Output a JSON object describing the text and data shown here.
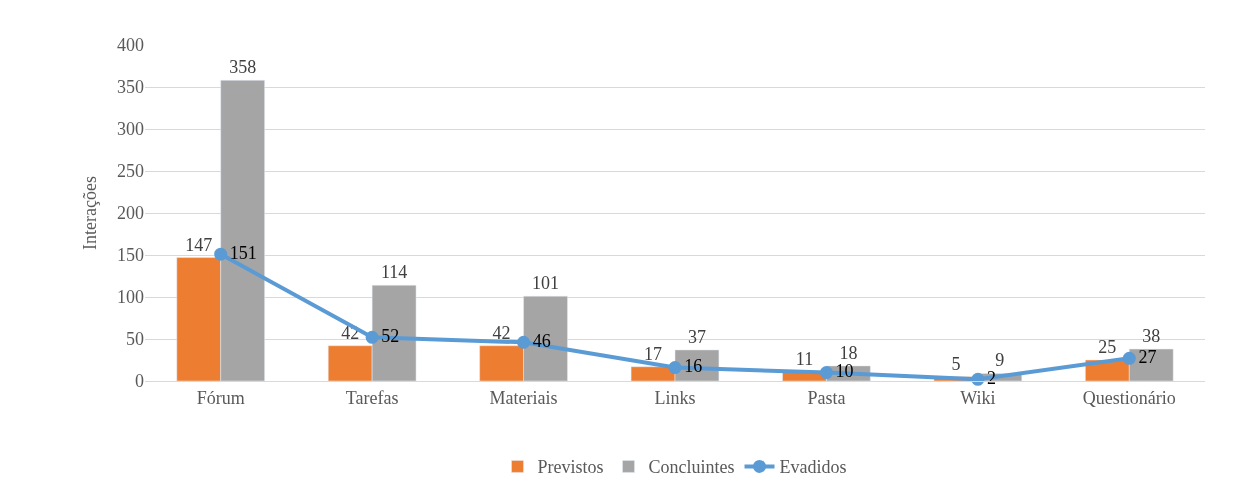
{
  "chart_data": {
    "type": "bar",
    "ylabel": "Interações",
    "categories": [
      "Fórum",
      "Tarefas",
      "Materiais",
      "Links",
      "Pasta",
      "Wiki",
      "Questionário"
    ],
    "series": [
      {
        "name": "Previstos",
        "color": "#ed7d31",
        "values": [
          147,
          42,
          42,
          17,
          11,
          5,
          25
        ]
      },
      {
        "name": "Concluintes",
        "color": "#a5a5a5",
        "values": [
          358,
          114,
          101,
          37,
          18,
          9,
          38
        ]
      },
      {
        "name": "Evadidos",
        "color": "#5b9bd5",
        "type": "line",
        "marker": "circle",
        "line_style": "solid",
        "values": [
          151,
          52,
          46,
          16,
          10,
          2,
          27
        ]
      }
    ],
    "ylim": [
      0,
      400
    ],
    "yticks": [
      0,
      50,
      100,
      150,
      200,
      250,
      300,
      350,
      400
    ],
    "grid": "y",
    "legend": "bottom",
    "data_labels": true
  }
}
